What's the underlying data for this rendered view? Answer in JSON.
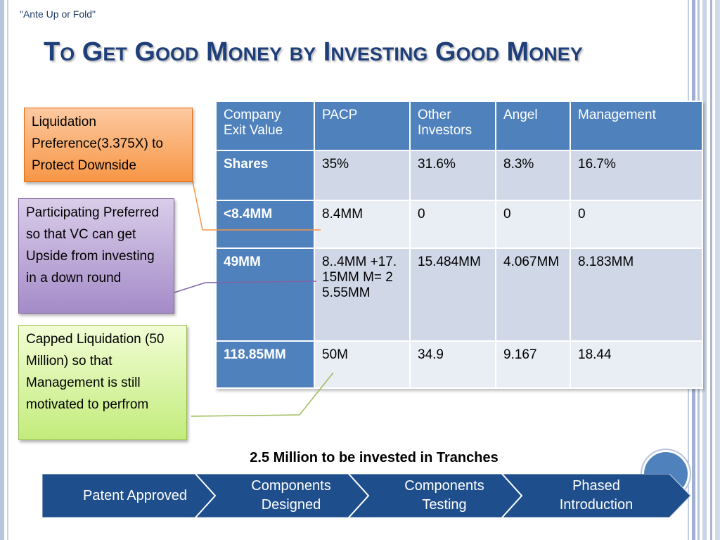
{
  "header_label": "\"Ante Up or Fold\"",
  "title": "To Get Good Money by Investing Good Money",
  "table": {
    "headers": [
      "Company Exit Value",
      "PACP",
      "Other Investors",
      "Angel",
      "Management"
    ],
    "rows": [
      [
        "Shares",
        "35%",
        "31.6%",
        "8.3%",
        "16.7%"
      ],
      [
        "<8.4MM",
        "8.4MM",
        "0",
        "0",
        "0"
      ],
      [
        "49MM",
        "8..4MM +17.15MM M= 25.55MM",
        "15.484MM",
        "4.067MM",
        "8.183MM"
      ],
      [
        "118.85MM",
        "50M",
        "34.9",
        "9.167",
        "18.44"
      ]
    ]
  },
  "callouts": [
    "Liquidation Preference(3.375X) to Protect Downside",
    "Participating Preferred so that VC can get Upside from investing in a down round",
    "Capped Liquidation (50 Million) so that Management is still motivated to perfrom"
  ],
  "tranche_title": "2.5 Million to be invested in Tranches",
  "steps": [
    "Patent Approved",
    "Components Designed",
    "Components Testing",
    "Phased Introduction"
  ],
  "colors": {
    "title": "#1f3f7a",
    "table_header": "#4f81bd",
    "row_light": "#e9edf4",
    "row_dark": "#d0d8e8",
    "process": "#1f4e8c",
    "callout_orange": "#f79646",
    "callout_purple": "#a48bc8",
    "callout_green": "#c2ec7b"
  }
}
